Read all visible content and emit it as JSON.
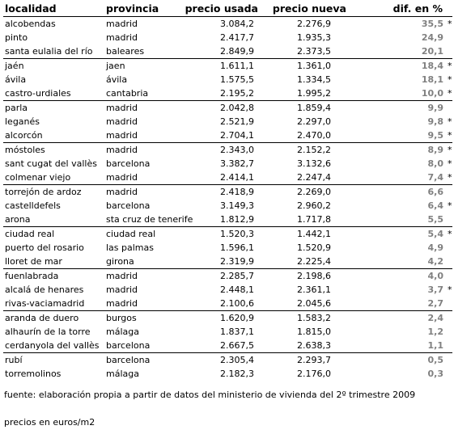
{
  "headers": {
    "localidad": "localidad",
    "provincia": "provincia",
    "precio_usada": "precio usada",
    "precio_nueva": "precio nueva",
    "dif": "dif. en %"
  },
  "groups": [
    [
      {
        "localidad": "alcobendas",
        "provincia": "madrid",
        "usada": "3.084,2",
        "nueva": "2.276,9",
        "dif": "35,5",
        "mark": "*"
      },
      {
        "localidad": "pinto",
        "provincia": "madrid",
        "usada": "2.417,7",
        "nueva": "1.935,3",
        "dif": "24,9",
        "mark": ""
      },
      {
        "localidad": "santa eulalia del río",
        "provincia": "baleares",
        "usada": "2.849,9",
        "nueva": "2.373,5",
        "dif": "20,1",
        "mark": ""
      }
    ],
    [
      {
        "localidad": "jaén",
        "provincia": "jaen",
        "usada": "1.611,1",
        "nueva": "1.361,0",
        "dif": "18,4",
        "mark": "*"
      },
      {
        "localidad": "ávila",
        "provincia": "ávila",
        "usada": "1.575,5",
        "nueva": "1.334,5",
        "dif": "18,1",
        "mark": "*"
      },
      {
        "localidad": "castro-urdiales",
        "provincia": "cantabria",
        "usada": "2.195,2",
        "nueva": "1.995,2",
        "dif": "10,0",
        "mark": "*"
      }
    ],
    [
      {
        "localidad": "parla",
        "provincia": "madrid",
        "usada": "2.042,8",
        "nueva": "1.859,4",
        "dif": "9,9",
        "mark": ""
      },
      {
        "localidad": "leganés",
        "provincia": "madrid",
        "usada": "2.521,9",
        "nueva": "2.297,0",
        "dif": "9,8",
        "mark": "*"
      },
      {
        "localidad": "alcorcón",
        "provincia": "madrid",
        "usada": "2.704,1",
        "nueva": "2.470,0",
        "dif": "9,5",
        "mark": "*"
      }
    ],
    [
      {
        "localidad": "móstoles",
        "provincia": "madrid",
        "usada": "2.343,0",
        "nueva": "2.152,2",
        "dif": "8,9",
        "mark": "*"
      },
      {
        "localidad": "sant cugat del vallès",
        "provincia": "barcelona",
        "usada": "3.382,7",
        "nueva": "3.132,6",
        "dif": "8,0",
        "mark": "*"
      },
      {
        "localidad": "colmenar viejo",
        "provincia": "madrid",
        "usada": "2.414,1",
        "nueva": "2.247,4",
        "dif": "7,4",
        "mark": "*"
      }
    ],
    [
      {
        "localidad": "torrejón de ardoz",
        "provincia": "madrid",
        "usada": "2.418,9",
        "nueva": "2.269,0",
        "dif": "6,6",
        "mark": ""
      },
      {
        "localidad": "castelldefels",
        "provincia": "barcelona",
        "usada": "3.149,3",
        "nueva": "2.960,2",
        "dif": "6,4",
        "mark": "*"
      },
      {
        "localidad": "arona",
        "provincia": "sta cruz de tenerife",
        "usada": "1.812,9",
        "nueva": "1.717,8",
        "dif": "5,5",
        "mark": ""
      }
    ],
    [
      {
        "localidad": "ciudad real",
        "provincia": "ciudad real",
        "usada": "1.520,3",
        "nueva": "1.442,1",
        "dif": "5,4",
        "mark": "*"
      },
      {
        "localidad": "puerto del rosario",
        "provincia": "las palmas",
        "usada": "1.596,1",
        "nueva": "1.520,9",
        "dif": "4,9",
        "mark": ""
      },
      {
        "localidad": "lloret de mar",
        "provincia": "girona",
        "usada": "2.319,9",
        "nueva": "2.225,4",
        "dif": "4,2",
        "mark": ""
      }
    ],
    [
      {
        "localidad": "fuenlabrada",
        "provincia": "madrid",
        "usada": "2.285,7",
        "nueva": "2.198,6",
        "dif": "4,0",
        "mark": ""
      },
      {
        "localidad": "alcalá de henares",
        "provincia": "madrid",
        "usada": "2.448,1",
        "nueva": "2.361,1",
        "dif": "3,7",
        "mark": "*"
      },
      {
        "localidad": "rivas-vaciamadrid",
        "provincia": "madrid",
        "usada": "2.100,6",
        "nueva": "2.045,6",
        "dif": "2,7",
        "mark": ""
      }
    ],
    [
      {
        "localidad": "aranda de duero",
        "provincia": "burgos",
        "usada": "1.620,9",
        "nueva": "1.583,2",
        "dif": "2,4",
        "mark": ""
      },
      {
        "localidad": "alhaurín de la torre",
        "provincia": "málaga",
        "usada": "1.837,1",
        "nueva": "1.815,0",
        "dif": "1,2",
        "mark": ""
      },
      {
        "localidad": "cerdanyola del vallès",
        "provincia": "barcelona",
        "usada": "2.667,5",
        "nueva": "2.638,3",
        "dif": "1,1",
        "mark": ""
      }
    ],
    [
      {
        "localidad": "rubí",
        "provincia": "barcelona",
        "usada": "2.305,4",
        "nueva": "2.293,7",
        "dif": "0,5",
        "mark": ""
      },
      {
        "localidad": "torremolinos",
        "provincia": "málaga",
        "usada": "2.182,3",
        "nueva": "2.176,0",
        "dif": "0,3",
        "mark": ""
      }
    ]
  ],
  "footer": {
    "source": "fuente: elaboración propia a partir de datos del ministerio de vivienda del 2º trimestre 2009",
    "units": "precios en euros/m2"
  },
  "colors": {
    "dif_text": "#808080",
    "separator": "#000000"
  }
}
